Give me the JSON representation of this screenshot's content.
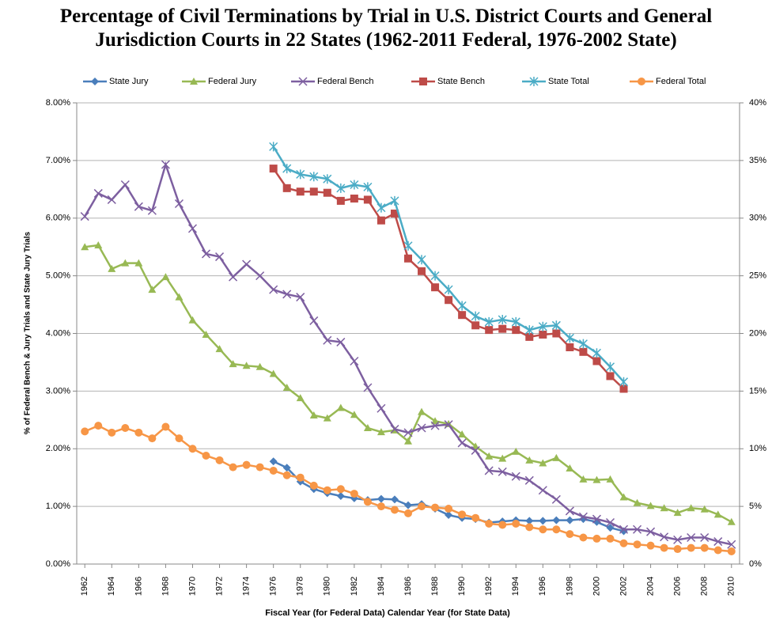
{
  "chart_data": {
    "type": "line",
    "title": "Percentage of Civil Terminations by Trial in U.S. District Courts and General\nJurisdiction Courts in 22 States (1962-2011 Federal, 1976-2002 State)",
    "x_label": "Fiscal Year (for Federal Data) Calendar Year (for State Data)",
    "y_label": "% of Federal Bench  & Jury Trials and State Jury Trials",
    "x": [
      1962,
      1963,
      1964,
      1965,
      1966,
      1967,
      1968,
      1969,
      1970,
      1971,
      1972,
      1973,
      1974,
      1975,
      1976,
      1977,
      1978,
      1979,
      1980,
      1981,
      1982,
      1983,
      1984,
      1985,
      1986,
      1987,
      1988,
      1989,
      1990,
      1991,
      1992,
      1993,
      1994,
      1995,
      1996,
      1997,
      1998,
      1999,
      2000,
      2001,
      2002,
      2003,
      2004,
      2005,
      2006,
      2007,
      2008,
      2009,
      2010
    ],
    "xlim": [
      1961.4,
      2010.6
    ],
    "xticks": [
      1962,
      1964,
      1966,
      1968,
      1970,
      1972,
      1974,
      1976,
      1978,
      1980,
      1982,
      1984,
      1986,
      1988,
      1990,
      1992,
      1994,
      1996,
      1998,
      2000,
      2002,
      2004,
      2006,
      2008,
      2010
    ],
    "ylim": [
      0,
      8
    ],
    "yticks": [
      {
        "value": 0,
        "label": "0.00%"
      },
      {
        "value": 1,
        "label": "1.00%"
      },
      {
        "value": 2,
        "label": "2.00%"
      },
      {
        "value": 3,
        "label": "3.00%"
      },
      {
        "value": 4,
        "label": "4.00%"
      },
      {
        "value": 5,
        "label": "5.00%"
      },
      {
        "value": 6,
        "label": "6.00%"
      },
      {
        "value": 7,
        "label": "7.00%"
      },
      {
        "value": 8,
        "label": "8.00%"
      }
    ],
    "y2lim": [
      0,
      40
    ],
    "y2ticks": [
      {
        "value": 0,
        "label": "0%"
      },
      {
        "value": 5,
        "label": "5%"
      },
      {
        "value": 10,
        "label": "10%"
      },
      {
        "value": 15,
        "label": "15%"
      },
      {
        "value": 20,
        "label": "20%"
      },
      {
        "value": 25,
        "label": "25%"
      },
      {
        "value": 30,
        "label": "30%"
      },
      {
        "value": 35,
        "label": "35%"
      },
      {
        "value": 40,
        "label": "40%"
      }
    ],
    "grid": true,
    "legend": "top",
    "series": [
      {
        "name": "State Jury",
        "color": "#4a7ebb",
        "marker": "diamond",
        "values": [
          null,
          null,
          null,
          null,
          null,
          null,
          null,
          null,
          null,
          null,
          null,
          null,
          null,
          null,
          1.78,
          1.67,
          1.43,
          1.3,
          1.23,
          1.18,
          1.14,
          1.11,
          1.13,
          1.12,
          1.02,
          1.04,
          0.96,
          0.85,
          0.8,
          0.78,
          0.72,
          0.74,
          0.76,
          0.75,
          0.75,
          0.76,
          0.76,
          0.78,
          0.73,
          0.63,
          0.57,
          null,
          null,
          null,
          null,
          null,
          null,
          null,
          null
        ]
      },
      {
        "name": "Federal Jury",
        "color": "#98b954",
        "marker": "triangle",
        "values": [
          5.5,
          5.53,
          5.12,
          5.22,
          5.22,
          4.76,
          4.98,
          4.63,
          4.23,
          3.98,
          3.73,
          3.47,
          3.44,
          3.42,
          3.3,
          3.06,
          2.88,
          2.58,
          2.53,
          2.71,
          2.59,
          2.36,
          2.29,
          2.32,
          2.13,
          2.64,
          2.48,
          2.43,
          2.25,
          2.04,
          1.87,
          1.83,
          1.95,
          1.8,
          1.75,
          1.84,
          1.66,
          1.47,
          1.46,
          1.47,
          1.16,
          1.06,
          1.01,
          0.97,
          0.89,
          0.97,
          0.95,
          0.86,
          0.73
        ]
      },
      {
        "name": "Federal Bench",
        "color": "#7d5fa0",
        "marker": "x",
        "values": [
          6.03,
          6.43,
          6.32,
          6.58,
          6.2,
          6.13,
          6.93,
          6.25,
          5.82,
          5.38,
          5.33,
          4.98,
          5.2,
          5.0,
          4.76,
          4.68,
          4.63,
          4.22,
          3.88,
          3.85,
          3.52,
          3.06,
          2.7,
          2.34,
          2.28,
          2.36,
          2.4,
          2.42,
          2.1,
          1.97,
          1.62,
          1.6,
          1.52,
          1.45,
          1.28,
          1.12,
          0.92,
          0.82,
          0.78,
          0.72,
          0.6,
          0.6,
          0.56,
          0.47,
          0.42,
          0.46,
          0.46,
          0.39,
          0.34
        ]
      },
      {
        "name": "State Bench",
        "color": "#be4b48",
        "marker": "square",
        "axis": "y2",
        "values": [
          null,
          null,
          null,
          null,
          null,
          null,
          null,
          null,
          null,
          null,
          null,
          null,
          null,
          null,
          34.3,
          32.6,
          32.3,
          32.3,
          32.2,
          31.5,
          31.7,
          31.6,
          29.8,
          30.4,
          26.5,
          25.4,
          24.0,
          22.9,
          21.6,
          20.7,
          20.3,
          20.4,
          20.3,
          19.7,
          19.9,
          20.0,
          18.8,
          18.4,
          17.6,
          16.3,
          15.2,
          null,
          null,
          null,
          null,
          null,
          null,
          null,
          null
        ]
      },
      {
        "name": "State Total",
        "color": "#4bacc6",
        "marker": "asterisk",
        "axis": "y2",
        "values": [
          null,
          null,
          null,
          null,
          null,
          null,
          null,
          null,
          null,
          null,
          null,
          null,
          null,
          null,
          36.2,
          34.3,
          33.8,
          33.6,
          33.4,
          32.6,
          32.9,
          32.7,
          30.9,
          31.5,
          27.6,
          26.4,
          25.0,
          23.8,
          22.4,
          21.5,
          21.0,
          21.2,
          21.0,
          20.3,
          20.6,
          20.7,
          19.6,
          19.1,
          18.3,
          17.1,
          15.8,
          null,
          null,
          null,
          null,
          null,
          null,
          null,
          null
        ]
      },
      {
        "name": "Federal Total",
        "color": "#f79646",
        "marker": "circle",
        "axis": "y2",
        "values": [
          11.5,
          12.0,
          11.4,
          11.8,
          11.4,
          10.9,
          11.9,
          10.9,
          10.0,
          9.4,
          9.0,
          8.4,
          8.6,
          8.4,
          8.1,
          7.7,
          7.5,
          6.8,
          6.4,
          6.5,
          6.1,
          5.4,
          5.0,
          4.7,
          4.4,
          5.0,
          4.9,
          4.8,
          4.3,
          4.0,
          3.5,
          3.4,
          3.5,
          3.2,
          3.0,
          3.0,
          2.6,
          2.3,
          2.2,
          2.2,
          1.8,
          1.7,
          1.6,
          1.4,
          1.3,
          1.4,
          1.4,
          1.2,
          1.1
        ]
      }
    ]
  }
}
